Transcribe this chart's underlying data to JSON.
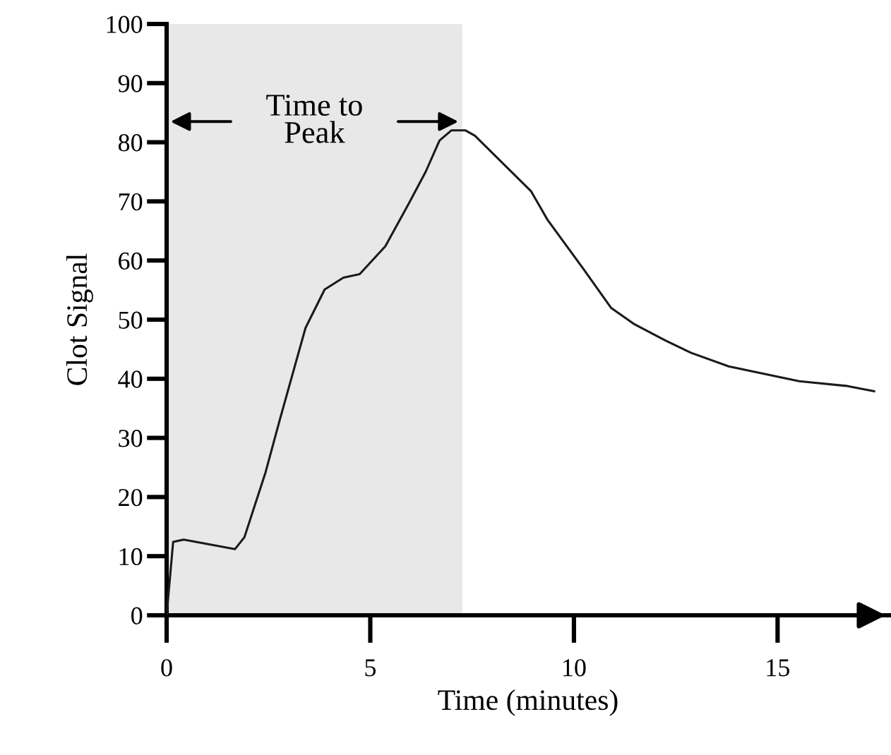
{
  "chart_data": {
    "type": "line",
    "xlabel": "Time (minutes)",
    "ylabel": "Clot Signal",
    "series": [
      {
        "color": "#1a1a1a",
        "x": [
          0,
          0.16,
          0.42,
          1.68,
          1.91,
          2.43,
          2.78,
          3.41,
          3.88,
          4.34,
          4.74,
          5.37,
          5.95,
          6.36,
          6.7,
          6.99,
          7.34,
          7.57,
          8.95,
          9.35,
          10.22,
          10.91,
          11.49,
          12.24,
          12.87,
          13.8,
          15.53,
          16.68,
          17.37
        ],
        "values": [
          0,
          12.4,
          12.8,
          11.2,
          13.2,
          24.2,
          33.1,
          48.6,
          55.1,
          57.1,
          57.7,
          62.4,
          69.7,
          75.0,
          80.3,
          82.0,
          82.0,
          81.1,
          71.7,
          66.9,
          58.7,
          52.0,
          49.2,
          46.5,
          44.4,
          42.1,
          39.6,
          38.8,
          37.9
        ]
      }
    ],
    "bands": [
      {
        "axis": "x",
        "from": 0,
        "to": 7.26,
        "label": "Time to\nPeak",
        "color": "#e8e8e8"
      }
    ],
    "xlim": [
      0,
      17.75
    ],
    "ylim": [
      0,
      100
    ],
    "xticks": [
      0,
      5,
      10,
      15
    ],
    "yticks": [
      0,
      10,
      20,
      30,
      40,
      50,
      60,
      70,
      80,
      90,
      100
    ],
    "grid": false,
    "marker": "none",
    "line_style": "solid"
  }
}
